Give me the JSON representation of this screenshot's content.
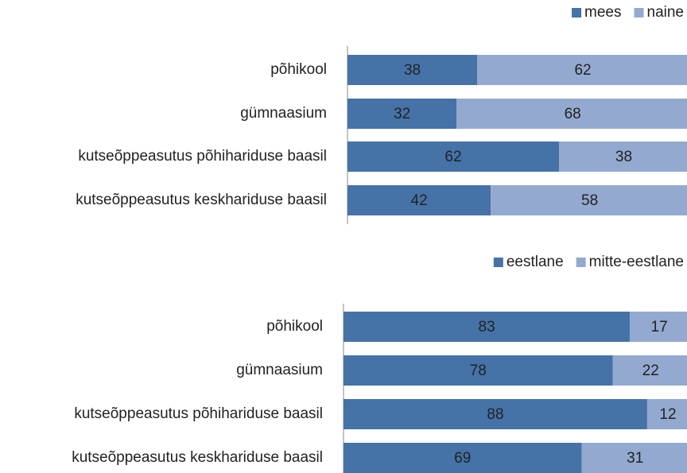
{
  "chart_data": [
    {
      "type": "bar",
      "orientation": "horizontal",
      "stacked": true,
      "legend": "top-right",
      "categories": [
        "põhikool",
        "gümnaasium",
        "kutseõppeasutus põhihariduse baasil",
        "kutseõppeasutus keskhariduse baasil"
      ],
      "series": [
        {
          "name": "mees",
          "color": "#4572a7",
          "values": [
            38,
            32,
            62,
            42
          ]
        },
        {
          "name": "naine",
          "color": "#93a9d0",
          "values": [
            62,
            68,
            38,
            58
          ]
        }
      ]
    },
    {
      "type": "bar",
      "orientation": "horizontal",
      "stacked": true,
      "legend": "top-right",
      "categories": [
        "põhikool",
        "gümnaasium",
        "kutseõppeasutus põhihariduse baasil",
        "kutseõppeasutus keskhariduse baasil"
      ],
      "series": [
        {
          "name": "eestlane",
          "color": "#4572a7",
          "values": [
            83,
            78,
            88,
            69
          ]
        },
        {
          "name": "mitte-eestlane",
          "color": "#93a9d0",
          "values": [
            17,
            22,
            12,
            31
          ]
        }
      ]
    }
  ]
}
